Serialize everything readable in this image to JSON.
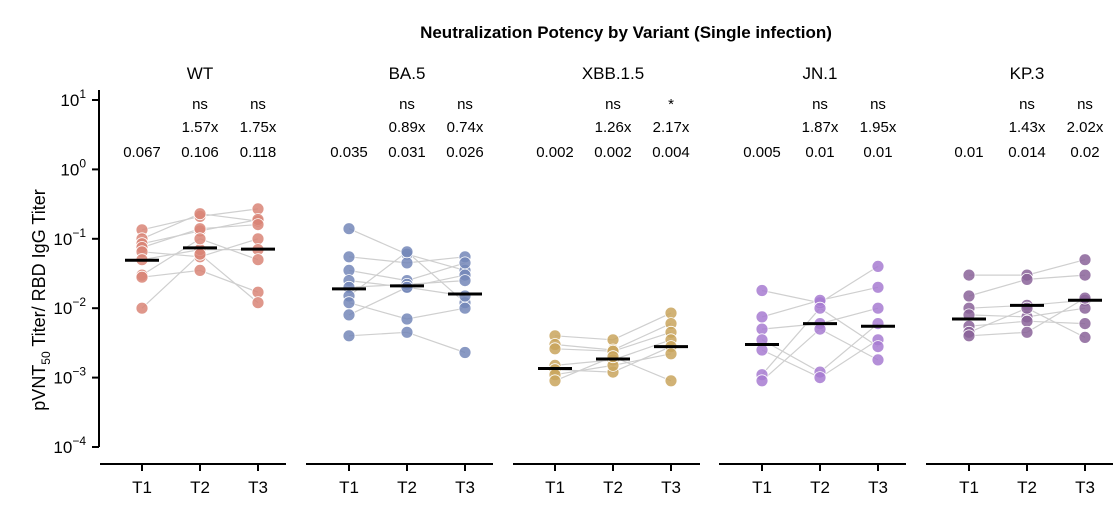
{
  "chart_data": {
    "type": "scatter",
    "title": "Neutralization Potency by Variant (Single infection)",
    "ylabel_main": "pVNT",
    "ylabel_sub": "50",
    "ylabel_rest": " Titer/ RBD IgG Titer",
    "yscale": "log10",
    "ylim": [
      0.0001,
      10
    ],
    "yticks": [
      {
        "value": 10,
        "base": "10",
        "exp": "1"
      },
      {
        "value": 1,
        "base": "10",
        "exp": "0"
      },
      {
        "value": 0.1,
        "base": "10",
        "exp": "−1"
      },
      {
        "value": 0.01,
        "base": "10",
        "exp": "−2"
      },
      {
        "value": 0.001,
        "base": "10",
        "exp": "−3"
      },
      {
        "value": 0.0001,
        "base": "10",
        "exp": "−4"
      }
    ],
    "timepoints": [
      "T1",
      "T2",
      "T3"
    ],
    "panels": [
      {
        "name": "WT",
        "color": "#d98577",
        "significance": [
          "",
          "ns",
          "ns"
        ],
        "fold_change": [
          "",
          "1.57x",
          "1.75x"
        ],
        "medians": [
          "0.067",
          "0.106",
          "0.118"
        ],
        "median_lines": [
          0.049,
          0.074,
          0.071
        ],
        "subjects": [
          [
            0.135,
            0.21,
            0.27
          ],
          [
            0.1,
            0.23,
            0.18
          ],
          [
            0.085,
            0.13,
            0.19
          ],
          [
            0.075,
            0.14,
            0.16
          ],
          [
            0.065,
            0.055,
            0.1
          ],
          [
            0.05,
            0.07,
            0.07
          ],
          [
            0.03,
            0.1,
            0.05
          ],
          [
            0.028,
            0.035,
            0.017
          ],
          [
            0.01,
            0.06,
            0.012
          ]
        ]
      },
      {
        "name": "BA.5",
        "color": "#7487b8",
        "significance": [
          "",
          "ns",
          "ns"
        ],
        "fold_change": [
          "",
          "0.89x",
          "0.74x"
        ],
        "medians": [
          "0.035",
          "0.031",
          "0.026"
        ],
        "median_lines": [
          0.019,
          0.021,
          0.016
        ],
        "subjects": [
          [
            0.14,
            0.06,
            0.035
          ],
          [
            0.055,
            0.045,
            0.055
          ],
          [
            0.035,
            0.025,
            0.045
          ],
          [
            0.025,
            0.02,
            0.03
          ],
          [
            0.02,
            0.022,
            0.025
          ],
          [
            0.015,
            0.065,
            0.012
          ],
          [
            0.012,
            0.007,
            0.01
          ],
          [
            0.008,
            0.02,
            0.015
          ],
          [
            0.004,
            0.0045,
            0.0023
          ]
        ]
      },
      {
        "name": "XBB.1.5",
        "color": "#c9a55d",
        "significance": [
          "",
          "ns",
          "*"
        ],
        "fold_change": [
          "",
          "1.26x",
          "2.17x"
        ],
        "medians": [
          "0.002",
          "0.002",
          "0.004"
        ],
        "median_lines": [
          0.00135,
          0.00185,
          0.0028
        ],
        "subjects": [
          [
            0.004,
            0.0035,
            0.0085
          ],
          [
            0.003,
            0.0025,
            0.006
          ],
          [
            0.0026,
            0.0024,
            0.0045
          ],
          [
            0.0015,
            0.0018,
            0.0035
          ],
          [
            0.0013,
            0.0012,
            0.0028
          ],
          [
            0.0011,
            0.0015,
            0.0022
          ],
          [
            0.0009,
            0.002,
            0.0009
          ]
        ]
      },
      {
        "name": "JN.1",
        "color": "#a77bd1",
        "significance": [
          "",
          "ns",
          "ns"
        ],
        "fold_change": [
          "",
          "1.87x",
          "1.95x"
        ],
        "medians": [
          "0.005",
          "0.01",
          "0.01"
        ],
        "median_lines": [
          0.003,
          0.006,
          0.0055
        ],
        "subjects": [
          [
            0.018,
            0.012,
            0.04
          ],
          [
            0.0075,
            0.013,
            0.02
          ],
          [
            0.005,
            0.006,
            0.01
          ],
          [
            0.0035,
            0.0012,
            0.006
          ],
          [
            0.0025,
            0.001,
            0.0035
          ],
          [
            0.0011,
            0.01,
            0.0028
          ],
          [
            0.0009,
            0.005,
            0.0018
          ]
        ]
      },
      {
        "name": "KP.3",
        "color": "#8a6399",
        "significance": [
          "",
          "ns",
          "ns"
        ],
        "fold_change": [
          "",
          "1.43x",
          "2.02x"
        ],
        "medians": [
          "0.01",
          "0.014",
          "0.02"
        ],
        "median_lines": [
          0.007,
          0.011,
          0.013
        ],
        "subjects": [
          [
            0.03,
            0.03,
            0.05
          ],
          [
            0.015,
            0.026,
            0.03
          ],
          [
            0.01,
            0.011,
            0.013
          ],
          [
            0.008,
            0.0075,
            0.01
          ],
          [
            0.0055,
            0.0065,
            0.006
          ],
          [
            0.0045,
            0.01,
            0.0038
          ],
          [
            0.004,
            0.0045,
            0.014
          ]
        ]
      }
    ]
  }
}
